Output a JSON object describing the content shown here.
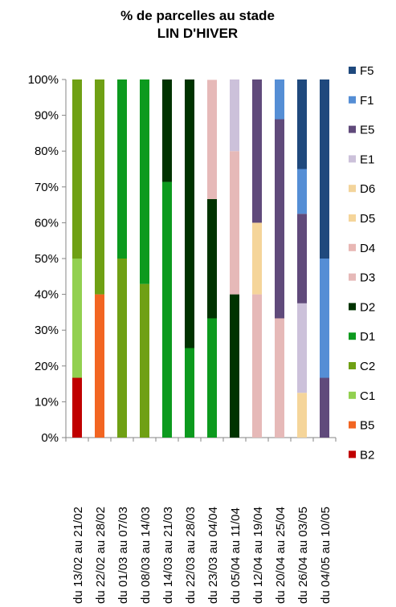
{
  "chart_data": {
    "type": "bar",
    "stacked": true,
    "percent": true,
    "title": [
      "% de parcelles au stade",
      "LIN D'HIVER"
    ],
    "xlabel": "",
    "ylabel": "",
    "ylim": [
      0,
      100
    ],
    "yticks": [
      "0%",
      "10%",
      "20%",
      "30%",
      "40%",
      "50%",
      "60%",
      "70%",
      "80%",
      "90%",
      "100%"
    ],
    "grid": false,
    "legend_position": "right",
    "categories": [
      "du 13/02 au 21/02",
      "du 22/02 au 28/02",
      "du 01/03 au 07/03",
      "du 08/03 au 14/03",
      "du 14/03 au 21/03",
      "du 22/03 au 28/03",
      "du 23/03 au 04/04",
      "du 05/04 au 11/04",
      "du 12/04 au 19/04",
      "du 20/04 au 25/04",
      "du 26/04 au 03/05",
      "du 04/05 au 10/05"
    ],
    "series": [
      {
        "name": "B2",
        "color": "#C00000",
        "values": [
          16.7,
          0,
          0,
          0,
          0,
          0,
          0,
          0,
          0,
          0,
          0,
          0
        ]
      },
      {
        "name": "B5",
        "color": "#F26522",
        "values": [
          0,
          40,
          0,
          0,
          0,
          0,
          0,
          0,
          0,
          0,
          0,
          0
        ]
      },
      {
        "name": "C1",
        "color": "#92D050",
        "values": [
          33.3,
          0,
          0,
          0,
          0,
          0,
          0,
          0,
          0,
          0,
          0,
          0
        ]
      },
      {
        "name": "C2",
        "color": "#6FA014",
        "values": [
          50,
          60,
          50,
          42.9,
          0,
          0,
          0,
          0,
          0,
          0,
          0,
          0
        ]
      },
      {
        "name": "D1",
        "color": "#0C9A1E",
        "values": [
          0,
          0,
          50,
          57.1,
          71.4,
          25,
          33.3,
          0,
          0,
          0,
          0,
          0
        ]
      },
      {
        "name": "D2",
        "color": "#003300",
        "values": [
          0,
          0,
          0,
          0,
          28.6,
          75,
          33.3,
          40,
          0,
          0,
          0,
          0
        ]
      },
      {
        "name": "D3",
        "color": "#E6B9B8",
        "values": [
          0,
          0,
          0,
          0,
          0,
          0,
          33.3,
          40,
          40,
          33.3,
          0,
          0
        ]
      },
      {
        "name": "D4",
        "color": "#E8B7B4",
        "values": [
          0,
          0,
          0,
          0,
          0,
          0,
          0,
          0,
          0,
          0,
          0,
          0
        ]
      },
      {
        "name": "D5",
        "color": "#F5D59A",
        "values": [
          0,
          0,
          0,
          0,
          0,
          0,
          0,
          0,
          20,
          0,
          12.5,
          0
        ]
      },
      {
        "name": "D6",
        "color": "#F3D49B",
        "values": [
          0,
          0,
          0,
          0,
          0,
          0,
          0,
          0,
          0,
          0,
          0,
          0
        ]
      },
      {
        "name": "E1",
        "color": "#CCC1DA",
        "values": [
          0,
          0,
          0,
          0,
          0,
          0,
          0,
          20,
          0,
          0,
          25,
          0
        ]
      },
      {
        "name": "E5",
        "color": "#604A7B",
        "values": [
          0,
          0,
          0,
          0,
          0,
          0,
          0,
          0,
          40,
          55.6,
          25,
          16.7
        ]
      },
      {
        "name": "F1",
        "color": "#558ED5",
        "values": [
          0,
          0,
          0,
          0,
          0,
          0,
          0,
          0,
          0,
          11.1,
          12.5,
          33.3
        ]
      },
      {
        "name": "F5",
        "color": "#1F497D",
        "values": [
          0,
          0,
          0,
          0,
          0,
          0,
          0,
          0,
          0,
          0,
          25,
          50
        ]
      }
    ]
  }
}
